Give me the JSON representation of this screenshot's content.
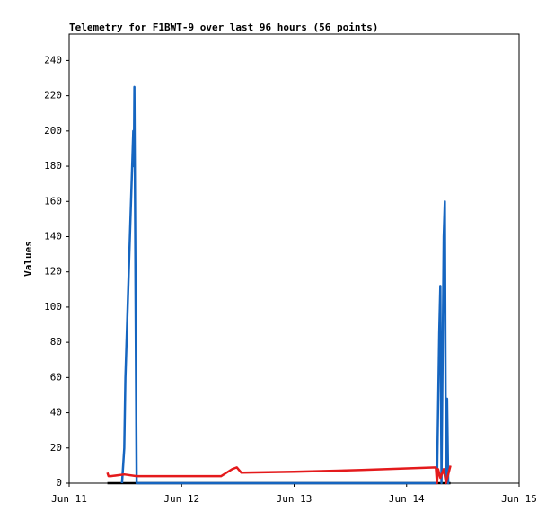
{
  "chart_data": {
    "type": "line",
    "title": "Telemetry for F1BWT-9 over last 96 hours (56 points)",
    "y_label": "Values",
    "xlim": [
      0,
      4
    ],
    "xticks": [
      {
        "value": 0,
        "label": "Jun 11"
      },
      {
        "value": 1,
        "label": "Jun 12"
      },
      {
        "value": 2,
        "label": "Jun 13"
      },
      {
        "value": 3,
        "label": "Jun 14"
      },
      {
        "value": 4,
        "label": "Jun 15"
      }
    ],
    "ylim": [
      0,
      255
    ],
    "yticks": [
      0,
      20,
      40,
      60,
      80,
      100,
      120,
      140,
      160,
      180,
      200,
      220,
      240
    ],
    "grid": false,
    "series": [
      {
        "color": "#000000",
        "x": [
          0.34,
          3.39
        ],
        "values": [
          0,
          0
        ]
      },
      {
        "color": "#1565c0",
        "x": [
          0.47,
          0.49,
          0.5,
          0.52,
          0.54,
          0.55,
          0.57,
          0.575,
          0.58,
          0.59,
          0.6,
          3.27,
          3.29,
          3.3,
          3.31,
          3.33,
          3.34,
          3.35,
          3.36,
          3.37,
          3.38
        ],
        "values": [
          0,
          20,
          60,
          100,
          140,
          160,
          200,
          180,
          225,
          110,
          0,
          0,
          85,
          112,
          0,
          140,
          160,
          0,
          48,
          0,
          0
        ]
      },
      {
        "color": "#e41a1c",
        "x": [
          0.34,
          0.35,
          0.37,
          0.49,
          0.6,
          1.35,
          1.45,
          1.49,
          1.53,
          2.0,
          2.6,
          3.26,
          3.27,
          3.28,
          3.3,
          3.33,
          3.35,
          3.37,
          3.39
        ],
        "values": [
          6,
          4,
          4,
          5,
          4,
          4,
          8,
          9,
          6,
          6.5,
          7.5,
          9,
          0,
          8,
          3,
          8,
          0,
          5,
          10
        ]
      }
    ]
  }
}
